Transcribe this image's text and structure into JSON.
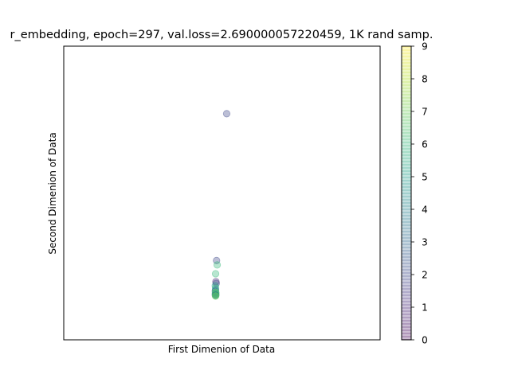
{
  "chart_data": {
    "type": "scatter",
    "title": "r_embedding, epoch=297, val.loss=2.690000057220459, 1K rand samp.",
    "xlabel": "First Dimenion of Data",
    "ylabel": "Second Dimenion of Data",
    "xlim": [
      0,
      100
    ],
    "ylim": [
      0,
      100
    ],
    "grid": false,
    "colorbar": {
      "range": [
        0,
        9
      ],
      "ticks": [
        "0",
        "1",
        "2",
        "3",
        "4",
        "5",
        "6",
        "7",
        "8",
        "9"
      ],
      "colormap": "viridis",
      "alpha": 0.4
    },
    "marker_alpha": 0.35,
    "points": [
      {
        "x": 51.5,
        "y": 77.0,
        "label": 2
      },
      {
        "x": 48.3,
        "y": 27.0,
        "label": 2
      },
      {
        "x": 48.5,
        "y": 25.5,
        "label": 6
      },
      {
        "x": 48.0,
        "y": 22.5,
        "label": 6
      },
      {
        "x": 48.1,
        "y": 19.8,
        "label": 1
      },
      {
        "x": 48.2,
        "y": 19.2,
        "label": 2
      },
      {
        "x": 47.9,
        "y": 18.4,
        "label": 5
      },
      {
        "x": 48.0,
        "y": 17.6,
        "label": 6
      },
      {
        "x": 48.0,
        "y": 17.0,
        "label": 4
      },
      {
        "x": 47.9,
        "y": 16.6,
        "label": 3
      },
      {
        "x": 48.0,
        "y": 16.2,
        "label": 7
      },
      {
        "x": 48.1,
        "y": 16.0,
        "label": 6
      },
      {
        "x": 47.9,
        "y": 15.7,
        "label": 5
      },
      {
        "x": 48.0,
        "y": 15.5,
        "label": 7
      },
      {
        "x": 48.1,
        "y": 15.3,
        "label": 4
      },
      {
        "x": 47.9,
        "y": 15.2,
        "label": 3
      },
      {
        "x": 48.0,
        "y": 15.0,
        "label": 6
      },
      {
        "x": 48.0,
        "y": 14.9,
        "label": 7
      }
    ]
  }
}
